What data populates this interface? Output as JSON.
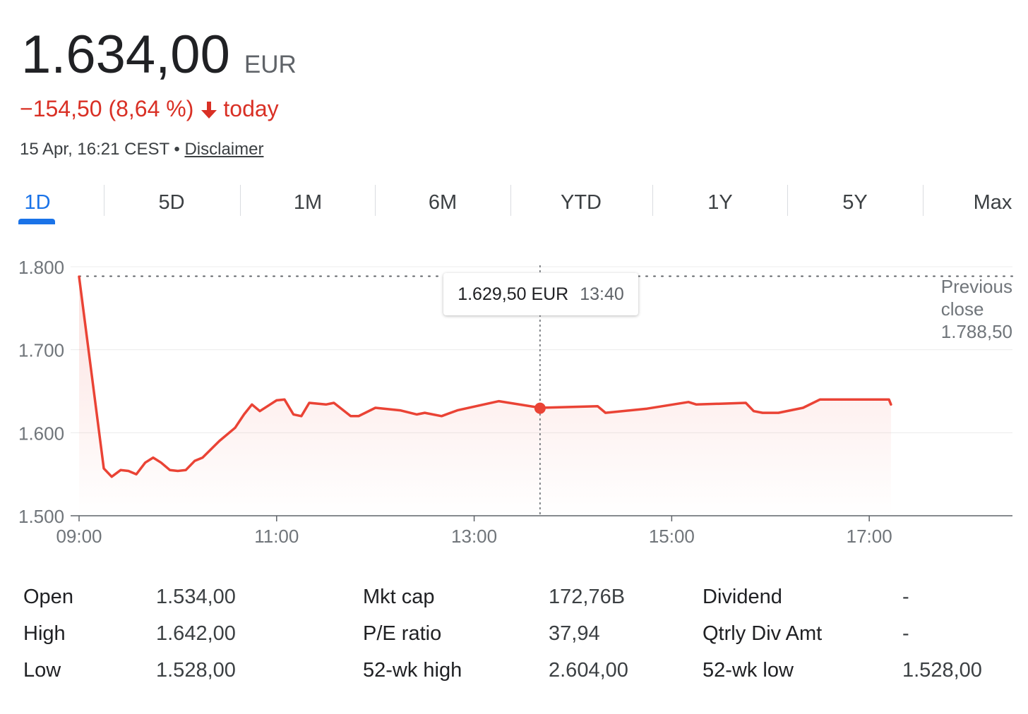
{
  "quote": {
    "price": "1.634,00",
    "currency": "EUR",
    "change": "−154,50 (8,64 %)",
    "change_direction": "down-arrow-icon",
    "change_suffix": "today",
    "timestamp": "15 Apr, 16:21 CEST",
    "separator": "•",
    "disclaimer": "Disclaimer",
    "negative_color": "#d93025"
  },
  "tabs": [
    {
      "label": "1D",
      "active": true
    },
    {
      "label": "5D",
      "active": false
    },
    {
      "label": "1M",
      "active": false
    },
    {
      "label": "6M",
      "active": false
    },
    {
      "label": "YTD",
      "active": false
    },
    {
      "label": "1Y",
      "active": false
    },
    {
      "label": "5Y",
      "active": false
    },
    {
      "label": "Max",
      "active": false
    }
  ],
  "tooltip": {
    "price": "1.629,50 EUR",
    "time": "13:40"
  },
  "previous_close": {
    "line1": "Previous",
    "line2": "close",
    "value": "1.788,50"
  },
  "stats": {
    "col1": [
      {
        "label": "Open",
        "value": "1.534,00"
      },
      {
        "label": "High",
        "value": "1.642,00"
      },
      {
        "label": "Low",
        "value": "1.528,00"
      }
    ],
    "col2": [
      {
        "label": "Mkt cap",
        "value": "172,76B"
      },
      {
        "label": "P/E ratio",
        "value": "37,94"
      },
      {
        "label": "52-wk high",
        "value": "2.604,00"
      }
    ],
    "col3": [
      {
        "label": "Dividend",
        "value": "-"
      },
      {
        "label": "Qtrly Div Amt",
        "value": "-"
      },
      {
        "label": "52-wk low",
        "value": "1.528,00"
      }
    ]
  },
  "chart_data": {
    "type": "line",
    "line_color": "#ea4335",
    "xlim": [
      9.0,
      18.45
    ],
    "ylim": [
      1500,
      1800
    ],
    "y_ticks": [
      {
        "value": 1800,
        "label": "1.800"
      },
      {
        "value": 1700,
        "label": "1.700"
      },
      {
        "value": 1600,
        "label": "1.600"
      },
      {
        "value": 1500,
        "label": "1.500"
      }
    ],
    "x_ticks": [
      {
        "value": 9,
        "label": "09:00"
      },
      {
        "value": 11,
        "label": "11:00"
      },
      {
        "value": 13,
        "label": "13:00"
      },
      {
        "value": 15,
        "label": "15:00"
      },
      {
        "value": 17,
        "label": "17:00"
      }
    ],
    "previous_close": 1788.5,
    "highlight": {
      "x": 13.667,
      "y": 1629.5
    },
    "grid": true,
    "series": [
      {
        "x": [
          9.0,
          9.25,
          9.33,
          9.42,
          9.5,
          9.58,
          9.67,
          9.75,
          9.83,
          9.92,
          10.0,
          10.08,
          10.17,
          10.25,
          10.42,
          10.58,
          10.67,
          10.75,
          10.83,
          11.0,
          11.08,
          11.17,
          11.25,
          11.33,
          11.5,
          11.58,
          11.75,
          11.83,
          12.0,
          12.25,
          12.42,
          12.5,
          12.67,
          12.83,
          13.25,
          13.67,
          14.25,
          14.33,
          14.75,
          15.17,
          15.25,
          15.75,
          15.83,
          15.92,
          16.08,
          16.33,
          16.5,
          17.0,
          17.2,
          17.22
        ],
        "y": [
          1788,
          1557,
          1547,
          1555,
          1554,
          1550,
          1564,
          1570,
          1564,
          1555,
          1554,
          1555,
          1566,
          1570,
          1590,
          1606,
          1622,
          1634,
          1626,
          1639,
          1640,
          1622,
          1620,
          1636,
          1634,
          1636,
          1620,
          1620,
          1630,
          1627,
          1622,
          1624,
          1620,
          1627,
          1638,
          1630,
          1632,
          1624,
          1629,
          1637,
          1634,
          1636,
          1626,
          1624,
          1624,
          1630,
          1640,
          1640,
          1640,
          1634
        ]
      }
    ]
  }
}
